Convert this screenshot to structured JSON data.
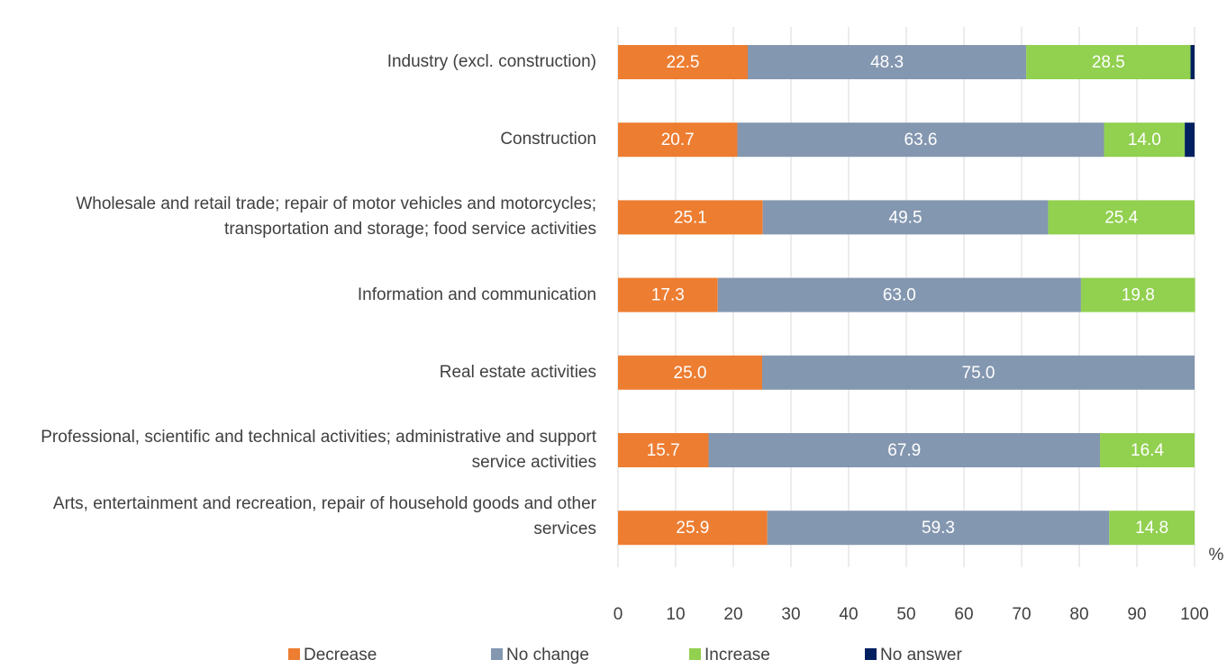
{
  "chart_data": {
    "type": "stacked-barh",
    "categories": [
      "Industry (excl. construction)",
      "Construction",
      "Wholesale and retail trade; repair of motor vehicles and motorcycles; transportation and storage; food service activities",
      "Information and communication",
      "Real estate activities",
      "Professional, scientific and technical activities; administrative and support service activities",
      "Arts, entertainment and recreation, repair of household goods and other services"
    ],
    "series": [
      {
        "name": "Decrease",
        "color": "#ed7d31",
        "values": [
          22.5,
          20.7,
          25.1,
          17.3,
          25.0,
          15.7,
          25.9
        ],
        "value_labels": [
          "22.5",
          "20.7",
          "25.1",
          "17.3",
          "25.0",
          "15.7",
          "25.9"
        ]
      },
      {
        "name": "No change",
        "color": "#8497b0",
        "values": [
          48.3,
          63.6,
          49.5,
          63.0,
          75.0,
          67.9,
          59.3
        ],
        "value_labels": [
          "48.3",
          "63.6",
          "49.5",
          "63.0",
          "75.0",
          "67.9",
          "59.3"
        ]
      },
      {
        "name": "Increase",
        "color": "#92d050",
        "values": [
          28.5,
          14.0,
          25.4,
          19.8,
          null,
          16.4,
          14.8
        ],
        "value_labels": [
          "28.5",
          "14.0",
          "25.4",
          "19.8",
          null,
          "16.4",
          "14.8"
        ]
      },
      {
        "name": "No answer",
        "color": "#002060",
        "values": [
          0.7,
          1.7,
          null,
          null,
          null,
          null,
          null
        ]
      }
    ],
    "xlabel": "%",
    "xlim": [
      0,
      100
    ],
    "xticks": [
      0,
      10,
      20,
      30,
      40,
      50,
      60,
      70,
      80,
      90,
      100
    ],
    "grid": true
  }
}
